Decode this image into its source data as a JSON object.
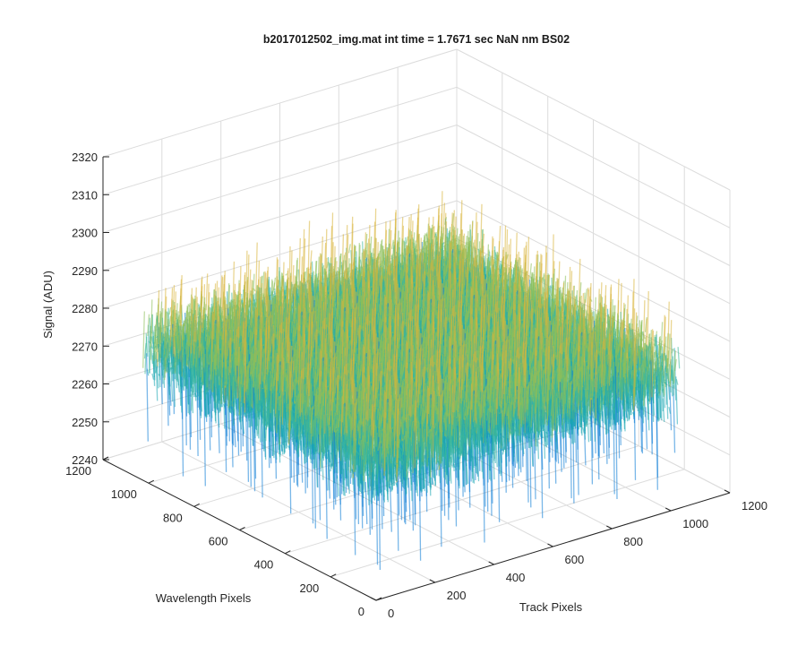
{
  "chart_data": {
    "type": "surface3d",
    "title": "b2017012502_img.mat int time = 1.7671 sec  NaN nm BS02",
    "xlabel": "Track Pixels",
    "ylabel": "Wavelength Pixels",
    "zlabel": "Signal (ADU)",
    "xlim": [
      0,
      1200
    ],
    "ylim": [
      0,
      1200
    ],
    "zlim": [
      2240,
      2320
    ],
    "x_ticks": [
      0,
      200,
      400,
      600,
      800,
      1000,
      1200
    ],
    "y_ticks": [
      0,
      200,
      400,
      600,
      800,
      1000,
      1200
    ],
    "z_ticks": [
      2240,
      2250,
      2260,
      2270,
      2280,
      2290,
      2300,
      2310,
      2320
    ],
    "x_tick_labels": [
      "0",
      "200",
      "400",
      "600",
      "800",
      "1000",
      "1200"
    ],
    "y_tick_labels": [
      "0",
      "200",
      "400",
      "600",
      "800",
      "1000",
      "1200"
    ],
    "z_tick_labels": [
      "2240",
      "2250",
      "2260",
      "2270",
      "2280",
      "2290",
      "2300",
      "2310",
      "2320"
    ],
    "data_extent": {
      "x": [
        0,
        1024
      ],
      "y": [
        0,
        1024
      ]
    },
    "surface": {
      "mean_signal": 2276,
      "noise_range": [
        2245,
        2315
      ],
      "colormap": "parula",
      "colors": [
        "#0b7bd5",
        "#1aa6b3",
        "#3cb89a",
        "#8cc05a",
        "#d8b53a",
        "#f2d33a"
      ]
    },
    "grid": true,
    "legend": "none"
  }
}
